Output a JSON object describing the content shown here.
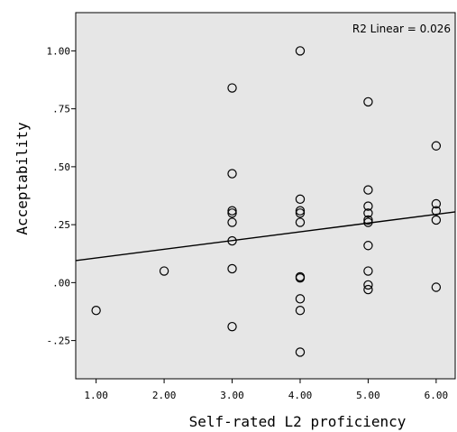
{
  "chart_data": {
    "type": "scatter",
    "xlabel": "Self-rated L2 proficiency",
    "ylabel": "Acceptability",
    "xlim": [
      0.7,
      6.28
    ],
    "ylim": [
      -0.415,
      1.165
    ],
    "x_ticks": [
      1,
      2,
      3,
      4,
      5,
      6
    ],
    "x_tick_labels": [
      "1.00",
      "2.00",
      "3.00",
      "4.00",
      "5.00",
      "6.00"
    ],
    "y_ticks": [
      1.0,
      0.75,
      0.5,
      0.25,
      0.0,
      -0.25
    ],
    "y_tick_labels": [
      "1.00",
      ".75",
      ".50",
      ".25",
      ".00",
      "-.25"
    ],
    "annotation": "R2 Linear = 0.026",
    "fit_line": {
      "x": [
        0.7,
        6.28
      ],
      "y": [
        0.095,
        0.305
      ]
    },
    "points": [
      {
        "x": 1,
        "y": -0.12
      },
      {
        "x": 2,
        "y": 0.05
      },
      {
        "x": 3,
        "y": 0.84
      },
      {
        "x": 3,
        "y": 0.47
      },
      {
        "x": 3,
        "y": 0.31
      },
      {
        "x": 3,
        "y": 0.3
      },
      {
        "x": 3,
        "y": 0.26
      },
      {
        "x": 3,
        "y": 0.18
      },
      {
        "x": 3,
        "y": 0.06
      },
      {
        "x": 3,
        "y": -0.19
      },
      {
        "x": 4,
        "y": 1.0
      },
      {
        "x": 4,
        "y": 0.36
      },
      {
        "x": 4,
        "y": 0.31
      },
      {
        "x": 4,
        "y": 0.3
      },
      {
        "x": 4,
        "y": 0.26
      },
      {
        "x": 4,
        "y": 0.025
      },
      {
        "x": 4,
        "y": 0.02
      },
      {
        "x": 4,
        "y": -0.07
      },
      {
        "x": 4,
        "y": -0.12
      },
      {
        "x": 4,
        "y": -0.3
      },
      {
        "x": 5,
        "y": 0.78
      },
      {
        "x": 5,
        "y": 0.4
      },
      {
        "x": 5,
        "y": 0.33
      },
      {
        "x": 5,
        "y": 0.3
      },
      {
        "x": 5,
        "y": 0.27
      },
      {
        "x": 5,
        "y": 0.26
      },
      {
        "x": 5,
        "y": 0.16
      },
      {
        "x": 5,
        "y": 0.05
      },
      {
        "x": 5,
        "y": -0.01
      },
      {
        "x": 5,
        "y": -0.03
      },
      {
        "x": 6,
        "y": 0.59
      },
      {
        "x": 6,
        "y": 0.34
      },
      {
        "x": 6,
        "y": 0.31
      },
      {
        "x": 6,
        "y": 0.27
      },
      {
        "x": 6,
        "y": -0.02
      }
    ],
    "colors": {
      "plot_background": "#e6e6e6",
      "marker": "#000000",
      "line": "#000000"
    }
  }
}
